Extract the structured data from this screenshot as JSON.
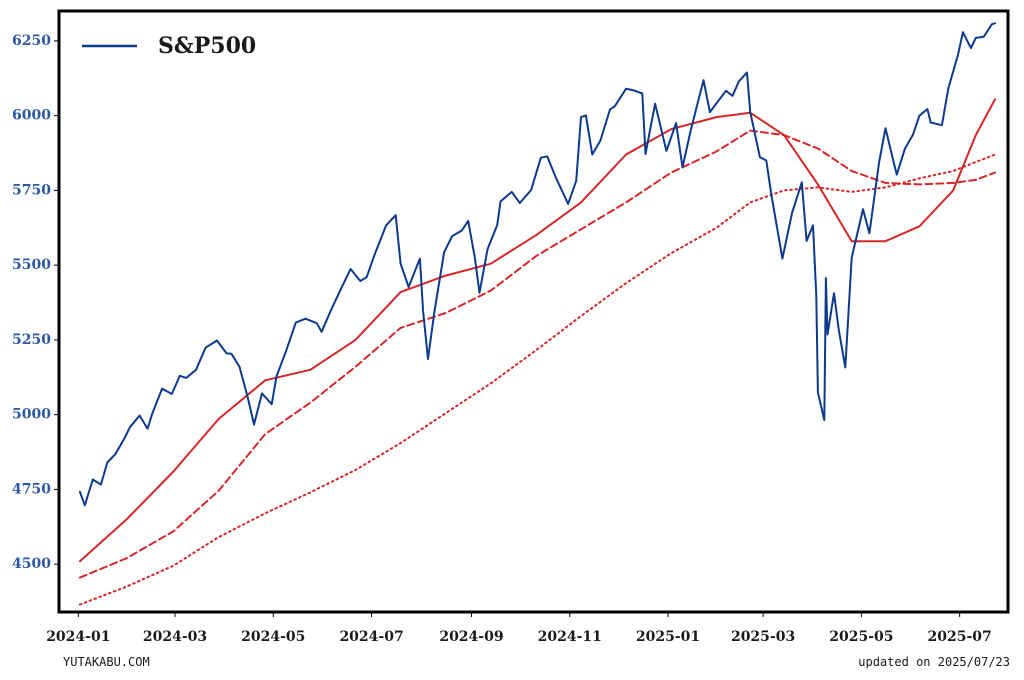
{
  "chart_data": {
    "type": "line",
    "legend": {
      "label": "S&P500",
      "placement": "top-left"
    },
    "ylim": [
      4340,
      6350
    ],
    "xlim": [
      "2023-12-20",
      "2025-07-31"
    ],
    "yticks": [
      4500,
      4750,
      5000,
      5250,
      5500,
      5750,
      6000,
      6250
    ],
    "xticks": [
      "2024-01",
      "2024-03",
      "2024-05",
      "2024-07",
      "2024-09",
      "2024-11",
      "2025-01",
      "2025-03",
      "2025-05",
      "2025-07"
    ],
    "grid": false,
    "colors": {
      "price": "#0e3a8c",
      "ma_short": "#d62728",
      "ma_mid": "#d62728",
      "ma_long": "#d62728",
      "tick_y": "#2b57a5"
    },
    "series": [
      {
        "style": "solid",
        "color": "#0e3a8c",
        "points": [
          [
            "2024-01-02",
            4742
          ],
          [
            "2024-01-05",
            4697
          ],
          [
            "2024-01-10",
            4783
          ],
          [
            "2024-01-15",
            4766
          ],
          [
            "2024-01-19",
            4840
          ],
          [
            "2024-01-24",
            4868
          ],
          [
            "2024-01-30",
            4925
          ],
          [
            "2024-02-02",
            4958
          ],
          [
            "2024-02-08",
            4997
          ],
          [
            "2024-02-13",
            4953
          ],
          [
            "2024-02-16",
            5005
          ],
          [
            "2024-02-22",
            5087
          ],
          [
            "2024-02-28",
            5069
          ],
          [
            "2024-03-04",
            5130
          ],
          [
            "2024-03-08",
            5123
          ],
          [
            "2024-03-14",
            5150
          ],
          [
            "2024-03-20",
            5224
          ],
          [
            "2024-03-27",
            5248
          ],
          [
            "2024-04-02",
            5205
          ],
          [
            "2024-04-05",
            5204
          ],
          [
            "2024-04-10",
            5160
          ],
          [
            "2024-04-15",
            5061
          ],
          [
            "2024-04-19",
            4967
          ],
          [
            "2024-04-24",
            5071
          ],
          [
            "2024-04-30",
            5035
          ],
          [
            "2024-05-03",
            5128
          ],
          [
            "2024-05-09",
            5214
          ],
          [
            "2024-05-15",
            5308
          ],
          [
            "2024-05-21",
            5321
          ],
          [
            "2024-05-28",
            5306
          ],
          [
            "2024-05-31",
            5277
          ],
          [
            "2024-06-06",
            5352
          ],
          [
            "2024-06-12",
            5421
          ],
          [
            "2024-06-18",
            5487
          ],
          [
            "2024-06-24",
            5447
          ],
          [
            "2024-06-28",
            5460
          ],
          [
            "2024-07-03",
            5537
          ],
          [
            "2024-07-10",
            5633
          ],
          [
            "2024-07-16",
            5667
          ],
          [
            "2024-07-19",
            5505
          ],
          [
            "2024-07-24",
            5427
          ],
          [
            "2024-07-31",
            5522
          ],
          [
            "2024-08-02",
            5346
          ],
          [
            "2024-08-05",
            5186
          ],
          [
            "2024-08-09",
            5344
          ],
          [
            "2024-08-15",
            5543
          ],
          [
            "2024-08-20",
            5597
          ],
          [
            "2024-08-26",
            5616
          ],
          [
            "2024-08-30",
            5648
          ],
          [
            "2024-09-03",
            5528
          ],
          [
            "2024-09-06",
            5408
          ],
          [
            "2024-09-11",
            5554
          ],
          [
            "2024-09-17",
            5634
          ],
          [
            "2024-09-19",
            5713
          ],
          [
            "2024-09-26",
            5745
          ],
          [
            "2024-10-01",
            5708
          ],
          [
            "2024-10-08",
            5751
          ],
          [
            "2024-10-14",
            5859
          ],
          [
            "2024-10-18",
            5864
          ],
          [
            "2024-10-23",
            5797
          ],
          [
            "2024-10-31",
            5705
          ],
          [
            "2024-11-05",
            5782
          ],
          [
            "2024-11-08",
            5995
          ],
          [
            "2024-11-11",
            6001
          ],
          [
            "2024-11-15",
            5870
          ],
          [
            "2024-11-20",
            5917
          ],
          [
            "2024-11-26",
            6021
          ],
          [
            "2024-11-29",
            6032
          ],
          [
            "2024-12-06",
            6090
          ],
          [
            "2024-12-11",
            6084
          ],
          [
            "2024-12-16",
            6074
          ],
          [
            "2024-12-18",
            5872
          ],
          [
            "2024-12-24",
            6040
          ],
          [
            "2024-12-31",
            5882
          ],
          [
            "2025-01-06",
            5975
          ],
          [
            "2025-01-10",
            5827
          ],
          [
            "2025-01-15",
            5949
          ],
          [
            "2025-01-23",
            6119
          ],
          [
            "2025-01-27",
            6012
          ],
          [
            "2025-01-31",
            6041
          ],
          [
            "2025-02-06",
            6083
          ],
          [
            "2025-02-10",
            6066
          ],
          [
            "2025-02-14",
            6115
          ],
          [
            "2025-02-19",
            6144
          ],
          [
            "2025-02-21",
            6013
          ],
          [
            "2025-02-27",
            5861
          ],
          [
            "2025-03-03",
            5850
          ],
          [
            "2025-03-06",
            5739
          ],
          [
            "2025-03-10",
            5615
          ],
          [
            "2025-03-13",
            5522
          ],
          [
            "2025-03-19",
            5675
          ],
          [
            "2025-03-25",
            5777
          ],
          [
            "2025-03-28",
            5581
          ],
          [
            "2025-04-01",
            5633
          ],
          [
            "2025-04-03",
            5397
          ],
          [
            "2025-04-04",
            5074
          ],
          [
            "2025-04-08",
            4982
          ],
          [
            "2025-04-09",
            5457
          ],
          [
            "2025-04-10",
            5268
          ],
          [
            "2025-04-14",
            5406
          ],
          [
            "2025-04-17",
            5283
          ],
          [
            "2025-04-21",
            5158
          ],
          [
            "2025-04-25",
            5525
          ],
          [
            "2025-05-02",
            5687
          ],
          [
            "2025-05-06",
            5607
          ],
          [
            "2025-05-12",
            5844
          ],
          [
            "2025-05-16",
            5958
          ],
          [
            "2025-05-21",
            5845
          ],
          [
            "2025-05-23",
            5803
          ],
          [
            "2025-05-28",
            5889
          ],
          [
            "2025-06-02",
            5936
          ],
          [
            "2025-06-06",
            6000
          ],
          [
            "2025-06-11",
            6022
          ],
          [
            "2025-06-13",
            5977
          ],
          [
            "2025-06-20",
            5968
          ],
          [
            "2025-06-24",
            6092
          ],
          [
            "2025-06-30",
            6205
          ],
          [
            "2025-07-03",
            6279
          ],
          [
            "2025-07-08",
            6226
          ],
          [
            "2025-07-11",
            6260
          ],
          [
            "2025-07-16",
            6264
          ],
          [
            "2025-07-21",
            6306
          ],
          [
            "2025-07-23",
            6309
          ]
        ]
      },
      {
        "style": "solid",
        "color": "#d62728",
        "points": [
          [
            "2024-01-02",
            4510
          ],
          [
            "2024-01-31",
            4650
          ],
          [
            "2024-02-29",
            4810
          ],
          [
            "2024-03-28",
            4985
          ],
          [
            "2024-04-26",
            5115
          ],
          [
            "2024-05-24",
            5150
          ],
          [
            "2024-06-21",
            5250
          ],
          [
            "2024-07-19",
            5410
          ],
          [
            "2024-08-16",
            5465
          ],
          [
            "2024-09-13",
            5505
          ],
          [
            "2024-10-11",
            5600
          ],
          [
            "2024-11-08",
            5710
          ],
          [
            "2024-12-06",
            5870
          ],
          [
            "2025-01-03",
            5955
          ],
          [
            "2025-01-31",
            5995
          ],
          [
            "2025-02-21",
            6010
          ],
          [
            "2025-03-14",
            5935
          ],
          [
            "2025-04-04",
            5770
          ],
          [
            "2025-04-25",
            5580
          ],
          [
            "2025-05-16",
            5580
          ],
          [
            "2025-06-06",
            5630
          ],
          [
            "2025-06-27",
            5750
          ],
          [
            "2025-07-11",
            5935
          ],
          [
            "2025-07-23",
            6055
          ]
        ]
      },
      {
        "style": "dashed",
        "color": "#d62728",
        "points": [
          [
            "2024-01-02",
            4455
          ],
          [
            "2024-01-31",
            4520
          ],
          [
            "2024-02-29",
            4610
          ],
          [
            "2024-03-28",
            4745
          ],
          [
            "2024-04-26",
            4935
          ],
          [
            "2024-05-24",
            5040
          ],
          [
            "2024-06-21",
            5160
          ],
          [
            "2024-07-19",
            5290
          ],
          [
            "2024-08-16",
            5340
          ],
          [
            "2024-09-13",
            5415
          ],
          [
            "2024-10-11",
            5530
          ],
          [
            "2024-11-08",
            5620
          ],
          [
            "2024-12-06",
            5710
          ],
          [
            "2025-01-03",
            5810
          ],
          [
            "2025-01-31",
            5880
          ],
          [
            "2025-02-21",
            5950
          ],
          [
            "2025-03-14",
            5935
          ],
          [
            "2025-04-04",
            5890
          ],
          [
            "2025-04-25",
            5815
          ],
          [
            "2025-05-16",
            5775
          ],
          [
            "2025-06-06",
            5770
          ],
          [
            "2025-06-27",
            5775
          ],
          [
            "2025-07-11",
            5785
          ],
          [
            "2025-07-23",
            5810
          ]
        ]
      },
      {
        "style": "dotted",
        "color": "#d62728",
        "points": [
          [
            "2024-01-02",
            4365
          ],
          [
            "2024-01-31",
            4425
          ],
          [
            "2024-02-29",
            4495
          ],
          [
            "2024-03-28",
            4590
          ],
          [
            "2024-04-26",
            4670
          ],
          [
            "2024-05-24",
            4740
          ],
          [
            "2024-06-21",
            4815
          ],
          [
            "2024-07-19",
            4905
          ],
          [
            "2024-08-16",
            5005
          ],
          [
            "2024-09-13",
            5105
          ],
          [
            "2024-10-11",
            5215
          ],
          [
            "2024-11-08",
            5330
          ],
          [
            "2024-12-06",
            5440
          ],
          [
            "2025-01-03",
            5540
          ],
          [
            "2025-01-31",
            5625
          ],
          [
            "2025-02-21",
            5710
          ],
          [
            "2025-03-14",
            5750
          ],
          [
            "2025-04-04",
            5760
          ],
          [
            "2025-04-25",
            5745
          ],
          [
            "2025-05-16",
            5760
          ],
          [
            "2025-06-06",
            5790
          ],
          [
            "2025-06-27",
            5815
          ],
          [
            "2025-07-11",
            5845
          ],
          [
            "2025-07-23",
            5870
          ]
        ]
      }
    ]
  },
  "footer": {
    "site": "YUTAKABU.COM",
    "updated": "updated on 2025/07/23"
  }
}
